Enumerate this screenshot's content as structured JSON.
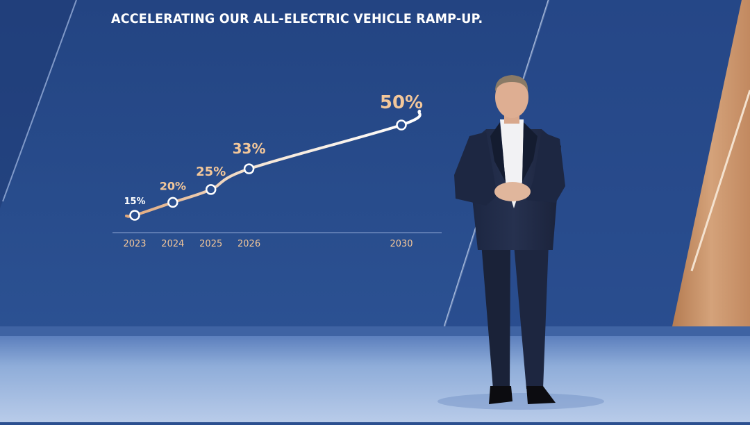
{
  "scene": {
    "colors": {
      "background_top": "#27498a",
      "background_bottom": "#2d5696",
      "floor": "#8aa9d8",
      "accent_line": "#ffffff",
      "label_orange": "#f3c79a",
      "wood": "#c7946a"
    },
    "presenter": {
      "suit": "navy",
      "shirt": "white"
    }
  },
  "chart_data": {
    "type": "line",
    "title": "ACCELERATING OUR ALL-ELECTRIC VEHICLE RAMP-UP.",
    "x": [
      2023,
      2024,
      2025,
      2026,
      2030
    ],
    "values": [
      15,
      20,
      25,
      33,
      50
    ],
    "labels": [
      "15%",
      "20%",
      "25%",
      "33%",
      "50%"
    ],
    "tick_labels": [
      "2023",
      "2024",
      "2025",
      "2026",
      "2030"
    ],
    "xlim": [
      2023,
      2030
    ],
    "grid": false,
    "legend": "none"
  }
}
